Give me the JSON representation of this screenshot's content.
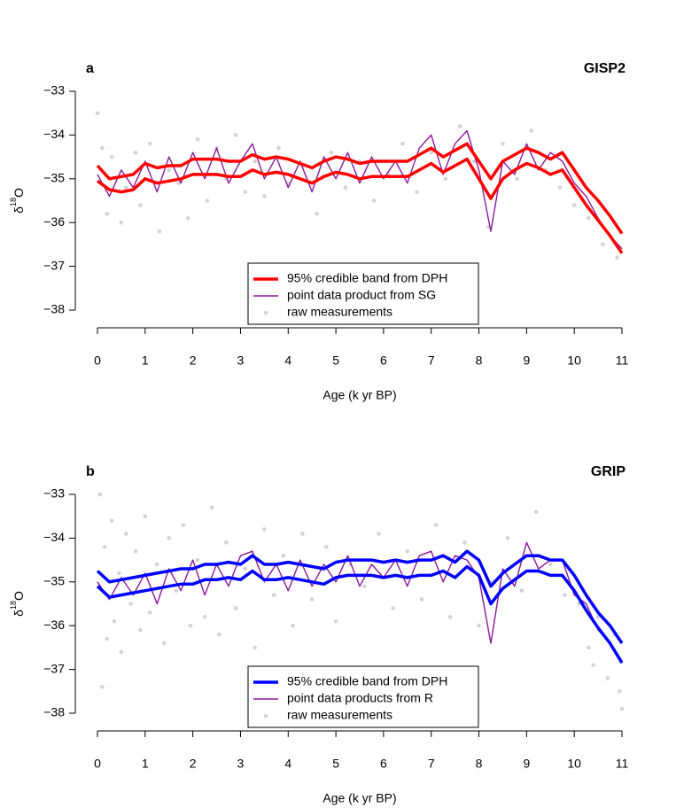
{
  "chart_data": [
    {
      "type": "line",
      "panel": "a",
      "title": "GISP2",
      "xlabel": "Age (k yr BP)",
      "ylabel": [
        "δ",
        "18",
        "O"
      ],
      "xlim": [
        0,
        11
      ],
      "xticks": [
        0,
        1,
        2,
        3,
        4,
        5,
        6,
        7,
        8,
        9,
        10,
        11
      ],
      "ylim": [
        -38,
        -33
      ],
      "yticks": [
        {
          "value": -38,
          "label": "−38"
        },
        {
          "value": -37,
          "label": "−37"
        },
        {
          "value": -36,
          "label": "−36"
        },
        {
          "value": -35,
          "label": "−35"
        },
        {
          "value": -34,
          "label": "−34"
        },
        {
          "value": -33,
          "label": "−33"
        }
      ],
      "legend": "bottom",
      "x": [
        0,
        0.25,
        0.5,
        0.75,
        1,
        1.25,
        1.5,
        1.75,
        2,
        2.25,
        2.5,
        2.75,
        3,
        3.25,
        3.5,
        3.75,
        4,
        4.25,
        4.5,
        4.75,
        5,
        5.25,
        5.5,
        5.75,
        6,
        6.25,
        6.5,
        6.75,
        7,
        7.25,
        7.5,
        7.75,
        8,
        8.25,
        8.5,
        8.75,
        9,
        9.25,
        9.5,
        9.75,
        10,
        10.25,
        10.5,
        10.75,
        11
      ],
      "series": [
        {
          "name": "raw measurements",
          "type": "scatter",
          "color": "#d3d3d3",
          "x": [
            0,
            0.1,
            0.2,
            0.3,
            0.5,
            0.6,
            0.8,
            0.9,
            1.1,
            1.3,
            1.5,
            1.7,
            1.9,
            2.1,
            2.3,
            2.5,
            2.7,
            2.9,
            3.1,
            3.3,
            3.5,
            3.8,
            4.0,
            4.3,
            4.6,
            4.9,
            5.2,
            5.5,
            5.8,
            6.1,
            6.4,
            6.7,
            7.0,
            7.3,
            7.6,
            7.9,
            8.2,
            8.5,
            8.8,
            9.1,
            9.4,
            9.7,
            10.0,
            10.3,
            10.6,
            10.9
          ],
          "values": [
            -33.5,
            -34.3,
            -35.8,
            -34.5,
            -36.0,
            -35.2,
            -34.4,
            -35.6,
            -34.2,
            -36.2,
            -34.8,
            -35.1,
            -35.9,
            -34.1,
            -35.5,
            -34.3,
            -35.0,
            -34.0,
            -35.3,
            -34.6,
            -35.4,
            -34.3,
            -35.1,
            -34.7,
            -35.8,
            -34.4,
            -35.2,
            -34.6,
            -35.5,
            -34.9,
            -34.2,
            -35.3,
            -34.4,
            -35.0,
            -33.8,
            -34.6,
            -36.1,
            -34.2,
            -35.0,
            -33.9,
            -34.8,
            -35.2,
            -35.6,
            -35.9,
            -36.5,
            -36.8
          ]
        },
        {
          "name": "point data product from SG",
          "type": "line",
          "color": "#8b1a9b",
          "values": [
            -34.9,
            -35.4,
            -34.8,
            -35.2,
            -34.6,
            -35.3,
            -34.5,
            -35.1,
            -34.4,
            -35.0,
            -34.3,
            -35.1,
            -34.6,
            -34.2,
            -35.0,
            -34.5,
            -35.2,
            -34.6,
            -35.3,
            -34.5,
            -35.0,
            -34.4,
            -35.1,
            -34.5,
            -35.0,
            -34.6,
            -35.1,
            -34.3,
            -34.0,
            -34.9,
            -34.2,
            -33.9,
            -34.8,
            -36.2,
            -34.6,
            -34.9,
            -34.2,
            -34.8,
            -34.4,
            -34.6,
            -35.1,
            -35.4,
            -35.9,
            -36.3,
            -36.6
          ]
        },
        {
          "name": "95% credible band from DPH",
          "type": "band",
          "color": "#ff0000",
          "upper": [
            -34.7,
            -35.0,
            -34.95,
            -34.9,
            -34.65,
            -34.75,
            -34.7,
            -34.7,
            -34.55,
            -34.55,
            -34.55,
            -34.6,
            -34.6,
            -34.45,
            -34.55,
            -34.5,
            -34.55,
            -34.65,
            -34.75,
            -34.6,
            -34.5,
            -34.55,
            -34.65,
            -34.6,
            -34.6,
            -34.6,
            -34.6,
            -34.45,
            -34.3,
            -34.5,
            -34.35,
            -34.2,
            -34.6,
            -35.0,
            -34.6,
            -34.45,
            -34.3,
            -34.4,
            -34.55,
            -34.4,
            -34.8,
            -35.2,
            -35.5,
            -35.85,
            -36.25
          ],
          "lower": [
            -35.05,
            -35.25,
            -35.3,
            -35.25,
            -35.0,
            -35.1,
            -35.05,
            -35.0,
            -34.9,
            -34.9,
            -34.9,
            -34.95,
            -34.95,
            -34.8,
            -34.9,
            -34.85,
            -34.9,
            -35.0,
            -35.1,
            -34.95,
            -34.85,
            -34.9,
            -35.0,
            -34.95,
            -34.95,
            -34.95,
            -34.95,
            -34.8,
            -34.65,
            -34.85,
            -34.7,
            -34.55,
            -35.0,
            -35.45,
            -35.0,
            -34.8,
            -34.65,
            -34.75,
            -34.9,
            -34.8,
            -35.2,
            -35.6,
            -35.95,
            -36.3,
            -36.7
          ]
        }
      ]
    },
    {
      "type": "line",
      "panel": "b",
      "title": "GRIP",
      "xlabel": "Age (k yr BP)",
      "ylabel": [
        "δ",
        "18",
        "O"
      ],
      "xlim": [
        0,
        11
      ],
      "xticks": [
        0,
        1,
        2,
        3,
        4,
        5,
        6,
        7,
        8,
        9,
        10,
        11
      ],
      "ylim": [
        -38,
        -33
      ],
      "yticks": [
        {
          "value": -38,
          "label": "−38"
        },
        {
          "value": -37,
          "label": "−37"
        },
        {
          "value": -36,
          "label": "−36"
        },
        {
          "value": -35,
          "label": "−35"
        },
        {
          "value": -34,
          "label": "−34"
        },
        {
          "value": -33,
          "label": "−33"
        }
      ],
      "legend": "bottom",
      "x": [
        0,
        0.25,
        0.5,
        0.75,
        1,
        1.25,
        1.5,
        1.75,
        2,
        2.25,
        2.5,
        2.75,
        3,
        3.25,
        3.5,
        3.75,
        4,
        4.25,
        4.5,
        4.75,
        5,
        5.25,
        5.5,
        5.75,
        6,
        6.25,
        6.5,
        6.75,
        7,
        7.25,
        7.5,
        7.75,
        8,
        8.25,
        8.5,
        8.75,
        9,
        9.25,
        9.5,
        9.75,
        10,
        10.25,
        10.5,
        10.75,
        11
      ],
      "series": [
        {
          "name": "raw measurements",
          "type": "scatter",
          "color": "#d3d3d3",
          "x": [
            0.05,
            0.1,
            0.15,
            0.2,
            0.3,
            0.35,
            0.45,
            0.5,
            0.6,
            0.7,
            0.8,
            0.9,
            1.0,
            1.1,
            1.25,
            1.4,
            1.5,
            1.65,
            1.8,
            1.95,
            2.1,
            2.25,
            2.4,
            2.55,
            2.7,
            2.9,
            3.1,
            3.3,
            3.5,
            3.7,
            3.9,
            4.1,
            4.3,
            4.5,
            4.8,
            5.0,
            5.3,
            5.6,
            5.9,
            6.2,
            6.5,
            6.8,
            7.1,
            7.4,
            7.7,
            8.0,
            8.3,
            8.6,
            8.9,
            9.2,
            9.5,
            9.8,
            10.1,
            10.3,
            10.5,
            10.7,
            10.85,
            10.95,
            11.0,
            10.4
          ],
          "values": [
            -33.0,
            -37.4,
            -34.2,
            -36.3,
            -33.6,
            -35.9,
            -34.8,
            -36.6,
            -33.9,
            -35.5,
            -34.3,
            -36.1,
            -33.5,
            -35.7,
            -34.6,
            -36.4,
            -34.0,
            -35.2,
            -33.7,
            -36.0,
            -34.5,
            -35.8,
            -33.3,
            -36.2,
            -34.1,
            -35.6,
            -34.7,
            -36.5,
            -33.8,
            -35.3,
            -34.4,
            -36.0,
            -33.9,
            -35.4,
            -34.2,
            -35.9,
            -34.6,
            -35.1,
            -33.9,
            -35.6,
            -34.3,
            -35.4,
            -33.7,
            -35.8,
            -34.1,
            -36.0,
            -35.0,
            -34.0,
            -35.2,
            -33.4,
            -34.6,
            -35.3,
            -35.5,
            -36.5,
            -35.8,
            -37.2,
            -36.2,
            -37.5,
            -37.9,
            -36.9
          ]
        },
        {
          "name": "point data products from R",
          "type": "line",
          "color": "#8b1a9b",
          "values": [
            -35.0,
            -35.4,
            -34.9,
            -35.3,
            -34.8,
            -35.5,
            -34.7,
            -35.2,
            -34.5,
            -35.3,
            -34.6,
            -35.1,
            -34.4,
            -34.3,
            -35.0,
            -34.6,
            -35.2,
            -34.5,
            -35.1,
            -34.6,
            -35.0,
            -34.4,
            -35.1,
            -34.6,
            -34.9,
            -34.5,
            -35.1,
            -34.4,
            -34.3,
            -35.0,
            -34.4,
            -34.5,
            -34.9,
            -36.4,
            -34.7,
            -35.1,
            -34.1,
            -34.7,
            -34.5,
            -34.5,
            -35.3,
            -35.5,
            -36.1,
            -36.4,
            -36.8
          ]
        },
        {
          "name": "95% credible band from DPH",
          "type": "band",
          "color": "#0000ff",
          "upper": [
            -34.75,
            -35.0,
            -34.95,
            -34.9,
            -34.85,
            -34.8,
            -34.75,
            -34.7,
            -34.7,
            -34.6,
            -34.6,
            -34.55,
            -34.6,
            -34.4,
            -34.6,
            -34.6,
            -34.55,
            -34.6,
            -34.65,
            -34.7,
            -34.55,
            -34.5,
            -34.5,
            -34.5,
            -34.55,
            -34.5,
            -34.55,
            -34.5,
            -34.5,
            -34.4,
            -34.55,
            -34.3,
            -34.5,
            -35.1,
            -34.8,
            -34.6,
            -34.4,
            -34.4,
            -34.5,
            -34.5,
            -34.85,
            -35.3,
            -35.7,
            -36.0,
            -36.4
          ],
          "lower": [
            -35.1,
            -35.35,
            -35.3,
            -35.25,
            -35.2,
            -35.15,
            -35.1,
            -35.05,
            -35.05,
            -34.95,
            -34.95,
            -34.9,
            -34.95,
            -34.75,
            -34.95,
            -34.95,
            -34.9,
            -34.95,
            -35.0,
            -35.05,
            -34.9,
            -34.85,
            -34.85,
            -34.85,
            -34.9,
            -34.85,
            -34.9,
            -34.85,
            -34.85,
            -34.75,
            -34.9,
            -34.65,
            -34.85,
            -35.5,
            -35.15,
            -34.95,
            -34.75,
            -34.75,
            -34.85,
            -34.85,
            -35.2,
            -35.65,
            -36.05,
            -36.4,
            -36.85
          ]
        }
      ]
    }
  ]
}
